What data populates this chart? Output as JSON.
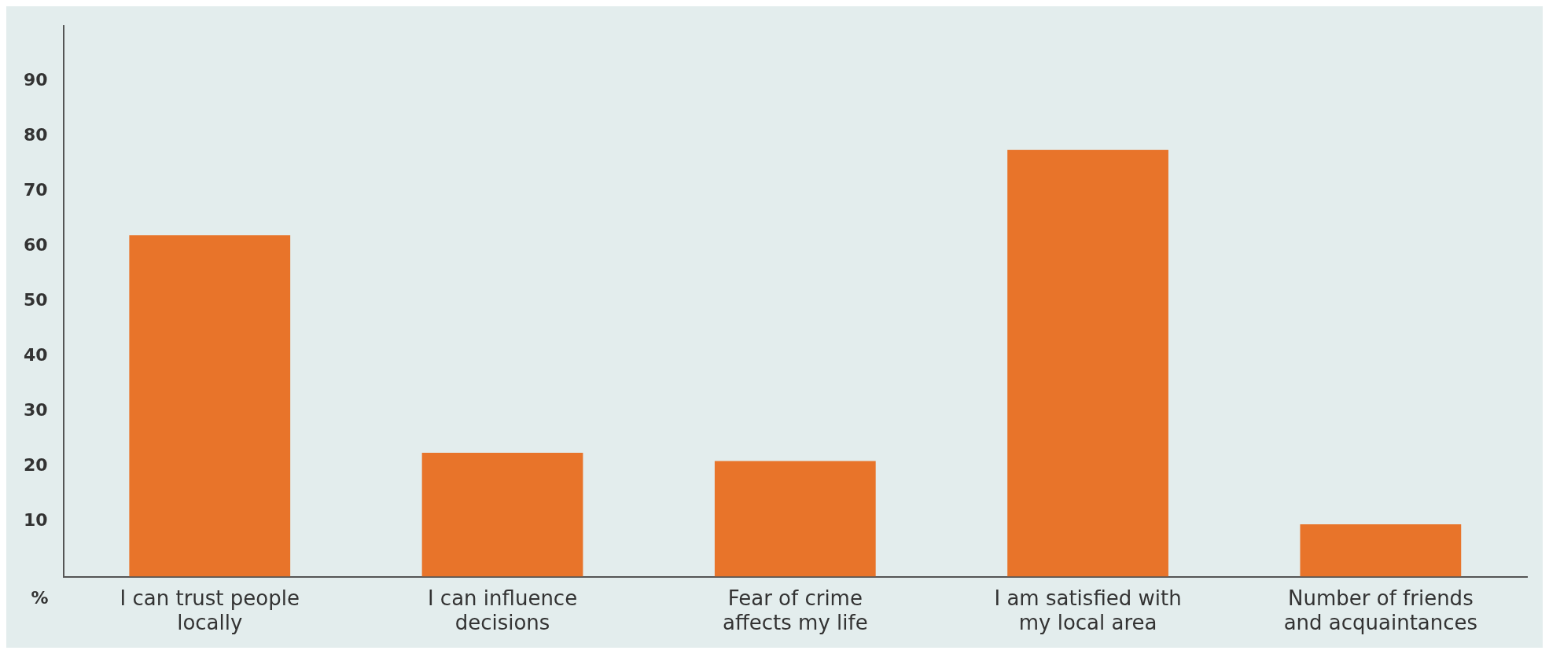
{
  "chart_data": {
    "type": "bar",
    "ylabel": "%",
    "categories": [
      "I can trust people locally",
      "I can influence decisions",
      "Fear of crime affects my life",
      "I am satisfied with my local area",
      "Number of friends and acquaintances"
    ],
    "values": [
      62,
      22.5,
      21,
      77.5,
      9.5
    ],
    "color": "#e8742a",
    "ylim": [
      0,
      100
    ],
    "yticks": [
      10,
      20,
      30,
      40,
      50,
      60,
      70,
      80,
      90
    ],
    "grid": false,
    "legend": false
  }
}
